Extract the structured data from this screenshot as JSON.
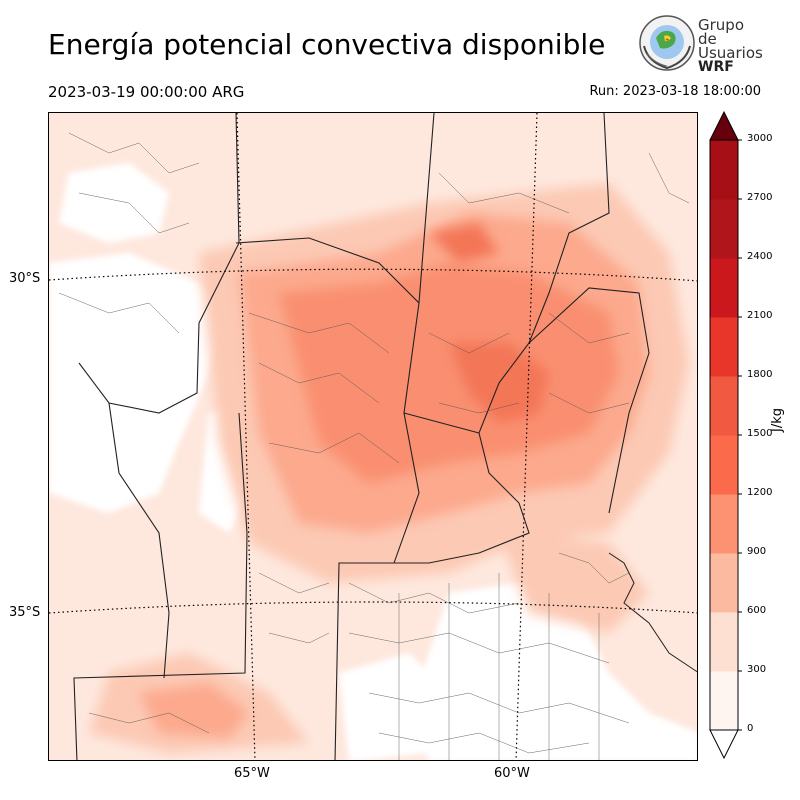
{
  "header": {
    "title": "Energía potencial convectiva disponible",
    "valid_time": "2023-03-19 00:00:00 ARG",
    "run_time": "Run: 2023-03-18 18:00:00"
  },
  "logo": {
    "line1": "Grupo de",
    "line2": "Usuarios",
    "line3": "WRF"
  },
  "map": {
    "lat_labels": [
      "30°S",
      "35°S"
    ],
    "lon_labels": [
      "65°W",
      "60°W"
    ]
  },
  "colorbar": {
    "unit": "J/kg",
    "ticks": [
      "0",
      "300",
      "600",
      "900",
      "1200",
      "1500",
      "1800",
      "2100",
      "2400",
      "2700",
      "3000"
    ],
    "colors": [
      "#fff5f0",
      "#fee0d2",
      "#fcbba1",
      "#fc9272",
      "#fb6a4a",
      "#f15a40",
      "#e8372a",
      "#cb181d",
      "#b0151c",
      "#a50f15",
      "#67000d"
    ]
  }
}
